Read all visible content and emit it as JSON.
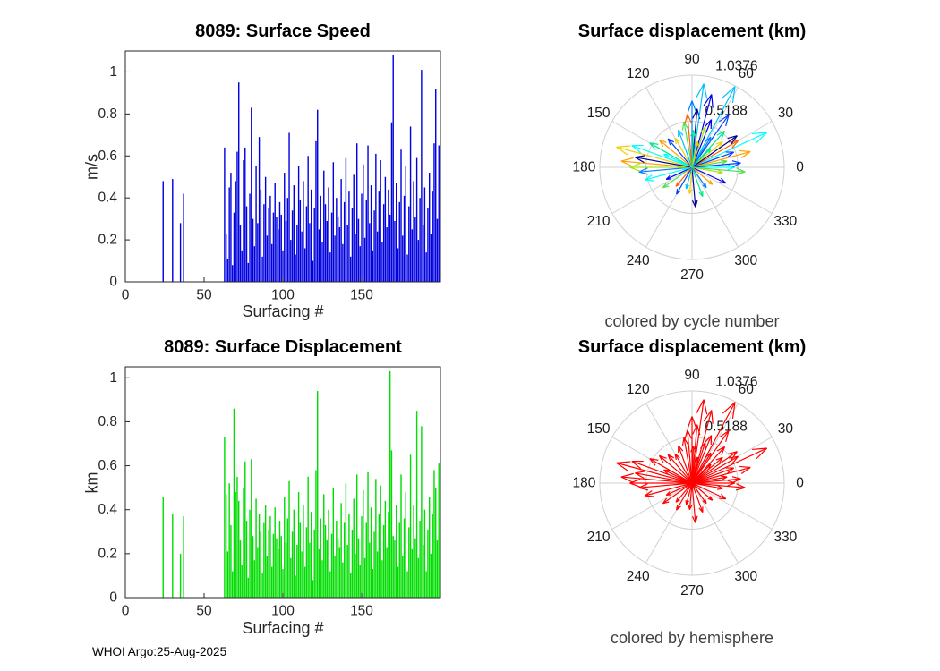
{
  "footer": {
    "text": "WHOI Argo:25-Aug-2025"
  },
  "colors": {
    "axis": "#262626",
    "grid": "#d0d0d0",
    "caption": "#404040",
    "speed_bar": "#0000e0",
    "km_bar": "#00dd00",
    "hemisphere_arrow": "#ff0000"
  },
  "chart_data": [
    {
      "id": "surface-speed",
      "type": "bar",
      "title": "8089: Surface Speed",
      "xlabel": "Surfacing #",
      "ylabel": "m/s",
      "xlim": [
        0,
        200
      ],
      "ylim": [
        0,
        1.1
      ],
      "xticks": [
        0,
        50,
        100,
        150
      ],
      "yticks": [
        0,
        0.2,
        0.4,
        0.6,
        0.8,
        1
      ],
      "bar_color": "#0000e0",
      "values": [
        0,
        0,
        0,
        0,
        0,
        0,
        0,
        0,
        0,
        0,
        0,
        0,
        0,
        0,
        0,
        0,
        0,
        0,
        0,
        0,
        0,
        0,
        0,
        0.48,
        0,
        0,
        0,
        0,
        0,
        0.49,
        0,
        0,
        0,
        0,
        0.28,
        0,
        0.42,
        0,
        0,
        0,
        0,
        0,
        0,
        0,
        0,
        0,
        0,
        0,
        0,
        0,
        0,
        0,
        0,
        0,
        0,
        0,
        0,
        0,
        0,
        0,
        0,
        0,
        0.64,
        0.23,
        0.11,
        0.45,
        0.52,
        0.08,
        0.33,
        0.48,
        0.62,
        0.95,
        0.27,
        0.15,
        0.58,
        0.64,
        0.36,
        0.09,
        0.42,
        0.83,
        0.3,
        0.17,
        0.55,
        0.28,
        0.69,
        0.44,
        0.12,
        0.37,
        0.5,
        0.22,
        0.35,
        0.41,
        0.18,
        0.33,
        0.47,
        0.31,
        0.25,
        0.38,
        0.32,
        0.15,
        0.52,
        0.29,
        0.4,
        0.71,
        0.2,
        0.34,
        0.46,
        0.13,
        0.27,
        0.55,
        0.39,
        0.24,
        0.48,
        0.16,
        0.36,
        0.6,
        0.28,
        0.44,
        0.1,
        0.35,
        0.67,
        0.82,
        0.25,
        0.41,
        0.19,
        0.53,
        0.37,
        0.29,
        0.45,
        0.14,
        0.33,
        0.57,
        0.22,
        0.4,
        0.31,
        0.26,
        0.49,
        0.18,
        0.38,
        0.59,
        0.27,
        0.43,
        0.12,
        0.35,
        0.51,
        0.23,
        0.66,
        0.3,
        0.17,
        0.42,
        0.56,
        0.21,
        0.39,
        0.65,
        0.28,
        0.46,
        0.15,
        0.34,
        0.61,
        0.24,
        0.43,
        0.58,
        0.19,
        0.37,
        0.5,
        0.26,
        0.44,
        0.32,
        0.76,
        1.08,
        0.29,
        0.47,
        0.16,
        0.38,
        0.63,
        0.22,
        0.41,
        0.55,
        0.13,
        0.36,
        0.74,
        0.25,
        0.48,
        0.31,
        0.59,
        0.2,
        0.4,
        1.01,
        0.27,
        0.45,
        0.14,
        0.35,
        0.52,
        0.23,
        0.43,
        0.66,
        0.92,
        0.3,
        0.65
      ]
    },
    {
      "id": "surface-displacement",
      "type": "bar",
      "title": "8089: Surface Displacement",
      "xlabel": "Surfacing #",
      "ylabel": "km",
      "xlim": [
        0,
        200
      ],
      "ylim": [
        0,
        1.05
      ],
      "xticks": [
        0,
        50,
        100,
        150
      ],
      "yticks": [
        0,
        0.2,
        0.4,
        0.6,
        0.8,
        1
      ],
      "bar_color": "#00dd00",
      "values": [
        0,
        0,
        0,
        0,
        0,
        0,
        0,
        0,
        0,
        0,
        0,
        0,
        0,
        0,
        0,
        0,
        0,
        0,
        0,
        0,
        0,
        0,
        0,
        0.46,
        0,
        0,
        0,
        0,
        0,
        0.38,
        0,
        0,
        0,
        0,
        0.2,
        0,
        0.37,
        0,
        0,
        0,
        0,
        0,
        0,
        0,
        0,
        0,
        0,
        0,
        0,
        0,
        0,
        0,
        0,
        0,
        0,
        0,
        0,
        0,
        0,
        0,
        0,
        0,
        0.73,
        0.47,
        0.21,
        0.52,
        0.33,
        0.12,
        0.86,
        0.48,
        0.55,
        0.44,
        0.26,
        0.15,
        0.5,
        0.62,
        0.35,
        0.09,
        0.4,
        0.63,
        0.28,
        0.17,
        0.45,
        0.23,
        0.38,
        0.3,
        0.11,
        0.34,
        0.42,
        0.19,
        0.31,
        0.37,
        0.14,
        0.29,
        0.41,
        0.27,
        0.22,
        0.35,
        0.28,
        0.13,
        0.46,
        0.25,
        0.36,
        0.53,
        0.18,
        0.3,
        0.4,
        0.1,
        0.24,
        0.48,
        0.34,
        0.21,
        0.42,
        0.14,
        0.32,
        0.55,
        0.25,
        0.39,
        0.08,
        0.31,
        0.58,
        0.94,
        0.22,
        0.36,
        0.17,
        0.47,
        0.33,
        0.26,
        0.4,
        0.12,
        0.29,
        0.5,
        0.19,
        0.35,
        0.27,
        0.23,
        0.43,
        0.16,
        0.34,
        0.52,
        0.24,
        0.38,
        0.11,
        0.31,
        0.45,
        0.2,
        0.56,
        0.27,
        0.15,
        0.37,
        0.49,
        0.18,
        0.34,
        0.57,
        0.25,
        0.41,
        0.13,
        0.3,
        0.54,
        0.21,
        0.38,
        0.51,
        0.17,
        0.33,
        0.44,
        0.23,
        0.39,
        1.03,
        0.67,
        0.28,
        0.26,
        0.42,
        0.14,
        0.34,
        0.56,
        0.19,
        0.36,
        0.48,
        0.12,
        0.32,
        0.65,
        0.22,
        0.42,
        0.27,
        0.85,
        0.18,
        0.35,
        0.78,
        0.24,
        0.4,
        0.12,
        0.31,
        0.46,
        0.2,
        0.38,
        0.58,
        0.5,
        0.26,
        0.61
      ]
    },
    {
      "id": "polar-by-cycle",
      "type": "compass",
      "title": "Surface displacement (km)",
      "caption": "colored by cycle number",
      "rings": [
        0.5188,
        1.0376
      ],
      "ring_labels": [
        "0.5188",
        "1.0376"
      ],
      "angle_ticks": [
        0,
        30,
        60,
        90,
        120,
        150,
        180,
        210,
        240,
        270,
        300,
        330
      ],
      "palette": [
        "#000090",
        "#0000f0",
        "#0040ff",
        "#0080ff",
        "#00c0ff",
        "#00ffff",
        "#00e890",
        "#50e050",
        "#a8e020",
        "#f0d000",
        "#ffa000",
        "#ff6000"
      ],
      "arrows": [
        [
          62,
          1.03,
          4
        ],
        [
          75,
          0.85,
          1
        ],
        [
          25,
          0.93,
          5
        ],
        [
          165,
          0.88,
          9
        ],
        [
          175,
          0.8,
          10
        ],
        [
          160,
          0.72,
          5
        ],
        [
          85,
          0.66,
          0
        ],
        [
          55,
          0.72,
          2
        ],
        [
          90,
          0.75,
          3
        ],
        [
          82,
          0.95,
          4
        ],
        [
          48,
          0.55,
          6
        ],
        [
          40,
          0.45,
          9
        ],
        [
          30,
          0.6,
          11
        ],
        [
          20,
          0.5,
          2
        ],
        [
          10,
          0.4,
          7
        ],
        [
          0,
          0.48,
          5
        ],
        [
          350,
          0.35,
          8
        ],
        [
          335,
          0.42,
          1
        ],
        [
          320,
          0.3,
          10
        ],
        [
          305,
          0.28,
          3
        ],
        [
          290,
          0.35,
          6
        ],
        [
          275,
          0.45,
          0
        ],
        [
          265,
          0.3,
          9
        ],
        [
          255,
          0.25,
          4
        ],
        [
          240,
          0.35,
          2
        ],
        [
          230,
          0.28,
          11
        ],
        [
          215,
          0.4,
          7
        ],
        [
          205,
          0.32,
          1
        ],
        [
          195,
          0.55,
          5
        ],
        [
          185,
          0.6,
          3
        ],
        [
          180,
          0.7,
          8
        ],
        [
          170,
          0.65,
          0
        ],
        [
          150,
          0.55,
          6
        ],
        [
          140,
          0.48,
          10
        ],
        [
          130,
          0.42,
          2
        ],
        [
          120,
          0.38,
          9
        ],
        [
          110,
          0.45,
          4
        ],
        [
          100,
          0.52,
          7
        ],
        [
          95,
          0.6,
          11
        ],
        [
          68,
          0.58,
          1
        ],
        [
          72,
          0.48,
          8
        ],
        [
          58,
          0.4,
          3
        ],
        [
          45,
          0.3,
          6
        ],
        [
          35,
          0.62,
          0
        ],
        [
          15,
          0.68,
          10
        ],
        [
          5,
          0.55,
          2
        ],
        [
          355,
          0.6,
          7
        ],
        [
          155,
          0.35,
          5
        ],
        [
          78,
          0.3,
          9
        ],
        [
          88,
          0.42,
          6
        ]
      ]
    },
    {
      "id": "polar-by-hemisphere",
      "type": "compass",
      "title": "Surface displacement (km)",
      "caption": "colored by hemisphere",
      "rings": [
        0.5188,
        1.0376
      ],
      "ring_labels": [
        "0.5188",
        "1.0376"
      ],
      "angle_ticks": [
        0,
        30,
        60,
        90,
        120,
        150,
        180,
        210,
        240,
        270,
        300,
        330
      ],
      "arrow_color": "#ff0000",
      "arrows": [
        [
          62,
          1.03
        ],
        [
          75,
          0.85
        ],
        [
          25,
          0.93
        ],
        [
          165,
          0.88
        ],
        [
          175,
          0.8
        ],
        [
          160,
          0.72
        ],
        [
          85,
          0.66
        ],
        [
          55,
          0.72
        ],
        [
          90,
          0.75
        ],
        [
          82,
          0.95
        ],
        [
          48,
          0.55
        ],
        [
          40,
          0.45
        ],
        [
          30,
          0.6
        ],
        [
          20,
          0.5
        ],
        [
          10,
          0.4
        ],
        [
          0,
          0.48
        ],
        [
          350,
          0.35
        ],
        [
          335,
          0.42
        ],
        [
          320,
          0.3
        ],
        [
          305,
          0.28
        ],
        [
          290,
          0.35
        ],
        [
          275,
          0.45
        ],
        [
          265,
          0.3
        ],
        [
          255,
          0.25
        ],
        [
          240,
          0.35
        ],
        [
          230,
          0.28
        ],
        [
          215,
          0.4
        ],
        [
          205,
          0.32
        ],
        [
          195,
          0.55
        ],
        [
          185,
          0.6
        ],
        [
          180,
          0.7
        ],
        [
          170,
          0.65
        ],
        [
          150,
          0.55
        ],
        [
          140,
          0.48
        ],
        [
          130,
          0.42
        ],
        [
          120,
          0.38
        ],
        [
          110,
          0.45
        ],
        [
          100,
          0.52
        ],
        [
          95,
          0.6
        ],
        [
          68,
          0.58
        ],
        [
          72,
          0.48
        ],
        [
          58,
          0.4
        ],
        [
          45,
          0.3
        ],
        [
          35,
          0.62
        ],
        [
          15,
          0.68
        ],
        [
          5,
          0.55
        ],
        [
          355,
          0.6
        ],
        [
          155,
          0.35
        ],
        [
          78,
          0.3
        ],
        [
          88,
          0.42
        ]
      ]
    }
  ]
}
